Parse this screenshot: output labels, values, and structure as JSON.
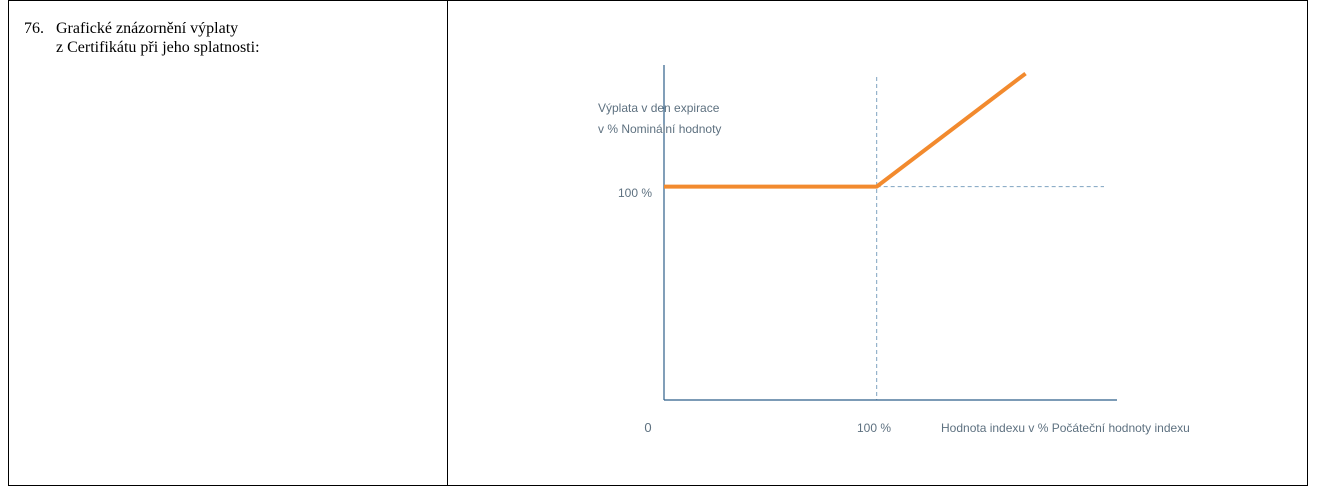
{
  "item": {
    "number": "76.",
    "text_lines": [
      "Grafické znázornění výplaty",
      "z Certifikátu při jeho splatnosti:"
    ]
  },
  "chart_data": {
    "type": "line",
    "ylabel_lines": [
      "Výplata v den expirace",
      "v % Nominální hodnoty"
    ],
    "xlabel": "Hodnota indexu v % Počáteční hodnoty indexu",
    "origin_label": "0",
    "x_tick_label": "100 %",
    "y_tick_label": "100 %",
    "series": [
      {
        "x": [
          0,
          100,
          170
        ],
        "y": [
          100,
          100,
          153
        ]
      }
    ],
    "xlim": [
      0,
      213
    ],
    "ylim": [
      0,
      157
    ],
    "reference_lines": {
      "x": 100,
      "y": 100
    },
    "line_color": "#f28a2e",
    "axis_color": "#2e5f8a",
    "guide_color": "#7fa3c0"
  }
}
